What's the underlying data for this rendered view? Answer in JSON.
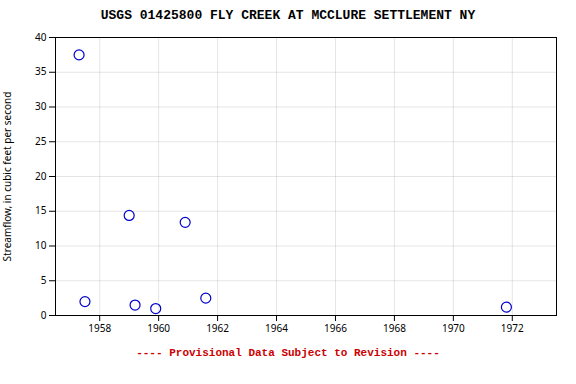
{
  "chart_data": {
    "type": "scatter",
    "title": "USGS 01425800 FLY CREEK AT MCCLURE SETTLEMENT NY",
    "ylabel": "Streamflow, in cubic feet per second",
    "x": [
      1957.3,
      1957.5,
      1959.0,
      1959.2,
      1959.9,
      1960.9,
      1961.6,
      1971.8
    ],
    "values": [
      37.5,
      2.0,
      14.4,
      1.5,
      1.0,
      13.4,
      2.5,
      1.2
    ],
    "color": "#0000cc",
    "marker": "circle",
    "xlim": [
      1956.5,
      1973.5
    ],
    "ylim": [
      0,
      40
    ],
    "xticks": [
      1958,
      1960,
      1962,
      1964,
      1966,
      1968,
      1970,
      1972
    ],
    "yticks": [
      0,
      5,
      10,
      15,
      20,
      25,
      30,
      35,
      40
    ],
    "grid": true,
    "annotations": [
      {
        "text": "---- Provisional Data Subject to Revision ----",
        "color": "#cc0000"
      }
    ]
  }
}
